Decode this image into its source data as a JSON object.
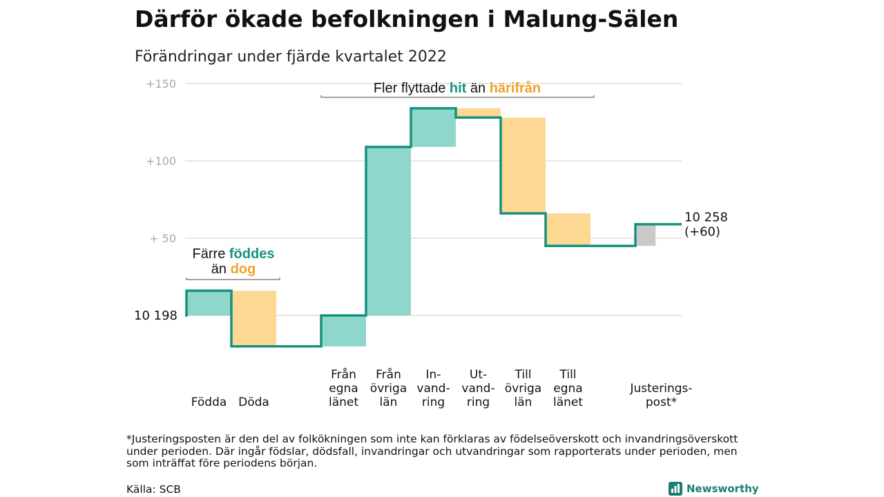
{
  "title": "Därför ökade befolkningen i Malung-Sälen",
  "subtitle": "Förändringar under fjärde kvartalet 2022",
  "chart_data": {
    "type": "waterfall",
    "y_ticks": [
      {
        "value": 150,
        "label": "+150"
      },
      {
        "value": 100,
        "label": "+100"
      },
      {
        "value": 50,
        "label": "+ 50"
      },
      {
        "value": 0,
        "label": ""
      }
    ],
    "ylim": [
      -20,
      150
    ],
    "grid": true,
    "start": {
      "label": "10 198",
      "value": 0
    },
    "end": {
      "label_line1": "10 258",
      "label_line2": "(+60)",
      "value": 60
    },
    "steps": [
      {
        "lines": [
          "Födda"
        ],
        "change": 16,
        "direction": "in"
      },
      {
        "lines": [
          "Döda"
        ],
        "change": -36,
        "direction": "out"
      },
      {
        "lines": [],
        "change": 0,
        "direction": "none"
      },
      {
        "lines": [
          "Från",
          "egna",
          "länet"
        ],
        "change": 20,
        "direction": "in"
      },
      {
        "lines": [
          "Från",
          "övriga",
          "län"
        ],
        "change": 109,
        "direction": "in"
      },
      {
        "lines": [
          "In-",
          "vand-",
          "ring"
        ],
        "change": 25,
        "direction": "in"
      },
      {
        "lines": [
          "Ut-",
          "vand-",
          "ring"
        ],
        "change": -6,
        "direction": "out"
      },
      {
        "lines": [
          "Till",
          "övriga",
          "län"
        ],
        "change": -62,
        "direction": "out"
      },
      {
        "lines": [
          "Till",
          "egna",
          "länet"
        ],
        "change": -21,
        "direction": "out"
      },
      {
        "lines": [],
        "change": 0,
        "direction": "none"
      },
      {
        "lines": [
          "Justerings-",
          "post*"
        ],
        "change": 14,
        "direction": "adjust"
      }
    ],
    "annotations": {
      "births": {
        "prefix": "Färre ",
        "hi1": "föddes",
        "mid": "än ",
        "hi2": "dog"
      },
      "migration": {
        "prefix": "Fler flyttade ",
        "hi1": "hit",
        "mid": " än ",
        "hi2": "härifrån"
      }
    },
    "colors": {
      "in": "#8fd6cd",
      "out": "#fcd893",
      "adjust": "#c9c9c9",
      "line": "#14927f",
      "grid": "#dddddd",
      "tick": "#a8a8a8",
      "teal_text": "#14927f",
      "orange_text": "#f0a12b"
    }
  },
  "footnote": "*Justeringsposten är den del av folkökningen som inte kan förklaras av födelseöverskott och invandringsöverskott under perioden. Där ingår födslar, dödsfall, invandringar och utvandringar som rapporterats under perioden, men som inträffat före periodens början.",
  "source": "Källa: SCB",
  "brand": {
    "name": "Newsworthy",
    "icon": "bar-chart-icon",
    "color": "#1a7f70"
  }
}
